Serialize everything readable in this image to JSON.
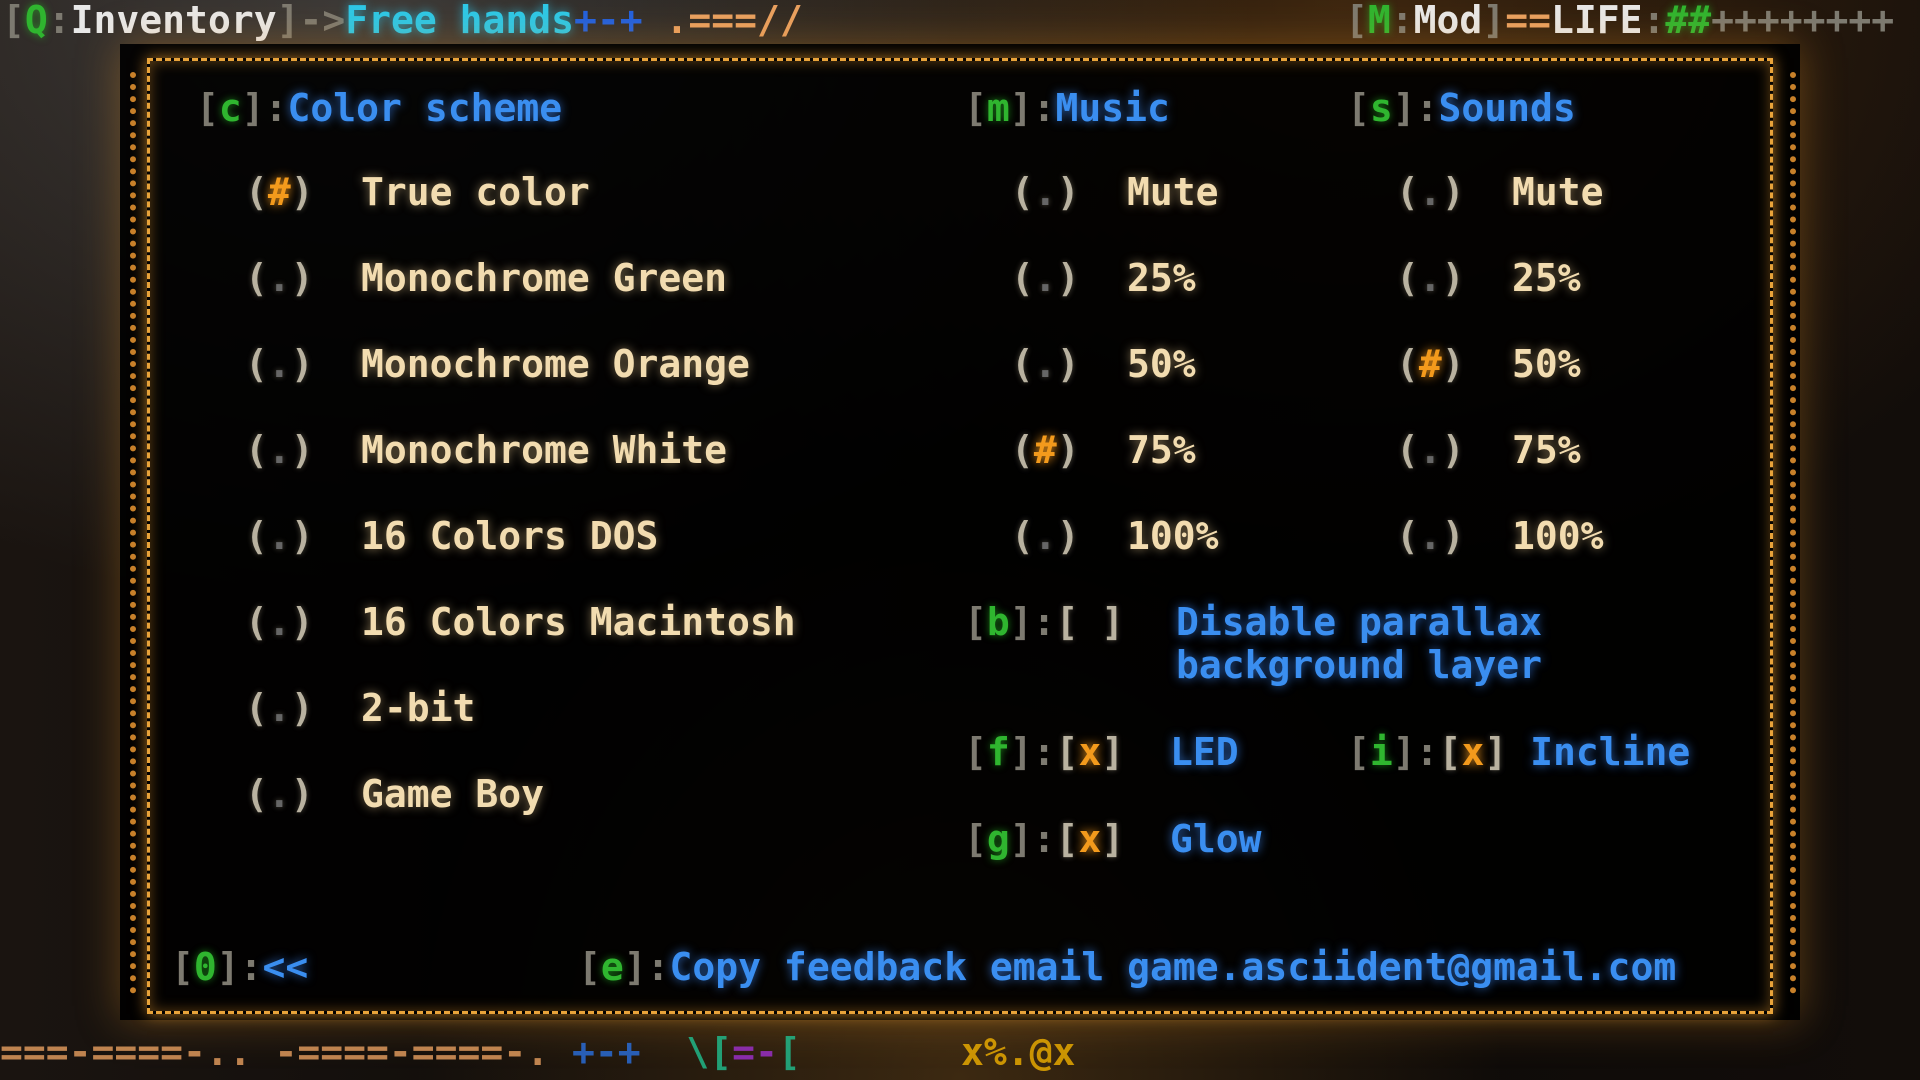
{
  "hud": {
    "inventory_key": "Q",
    "inventory_label": "Inventory",
    "hands_label": "Free hands",
    "mod_key": "M",
    "mod_label": "Mod",
    "life_label": "LIFE",
    "life_filled": "##",
    "life_empty": "++++++++"
  },
  "dialog": {
    "color_scheme": {
      "key": "c",
      "title": "Color scheme",
      "options": [
        {
          "label": "True color",
          "selected": true
        },
        {
          "label": "Monochrome Green",
          "selected": false
        },
        {
          "label": "Monochrome Orange",
          "selected": false
        },
        {
          "label": "Monochrome White",
          "selected": false
        },
        {
          "label": "16 Colors DOS",
          "selected": false
        },
        {
          "label": "16 Colors Macintosh",
          "selected": false
        },
        {
          "label": "2-bit",
          "selected": false
        },
        {
          "label": "Game Boy",
          "selected": false
        }
      ]
    },
    "music": {
      "key": "m",
      "title": "Music",
      "options": [
        {
          "label": "Mute",
          "selected": false
        },
        {
          "label": "25%",
          "selected": false
        },
        {
          "label": "50%",
          "selected": false
        },
        {
          "label": "75%",
          "selected": true
        },
        {
          "label": "100%",
          "selected": false
        }
      ]
    },
    "sounds": {
      "key": "s",
      "title": "Sounds",
      "options": [
        {
          "label": "Mute",
          "selected": false
        },
        {
          "label": "25%",
          "selected": false
        },
        {
          "label": "50%",
          "selected": true
        },
        {
          "label": "75%",
          "selected": false
        },
        {
          "label": "100%",
          "selected": false
        }
      ]
    },
    "radio_on": "(#)",
    "radio_off": "( )",
    "parallax": {
      "key": "b",
      "box": "[ ]",
      "label_line1": "Disable parallax",
      "label_line2": "background layer"
    },
    "led": {
      "key": "f",
      "box": "[x]",
      "label": "LED"
    },
    "incline": {
      "key": "i",
      "box": "[x]",
      "label": "Incline"
    },
    "glow": {
      "key": "g",
      "box": "[x]",
      "label": "Glow"
    },
    "back": {
      "key": "0",
      "label": "<<"
    },
    "feedback": {
      "key": "e",
      "label": "Copy feedback email",
      "email": "game.asciident@gmail.com"
    }
  },
  "colors": {
    "accent": "#e8a33a",
    "key": "#2fb52f",
    "heading": "#3a8ef0",
    "selected": "#f39a1c"
  }
}
